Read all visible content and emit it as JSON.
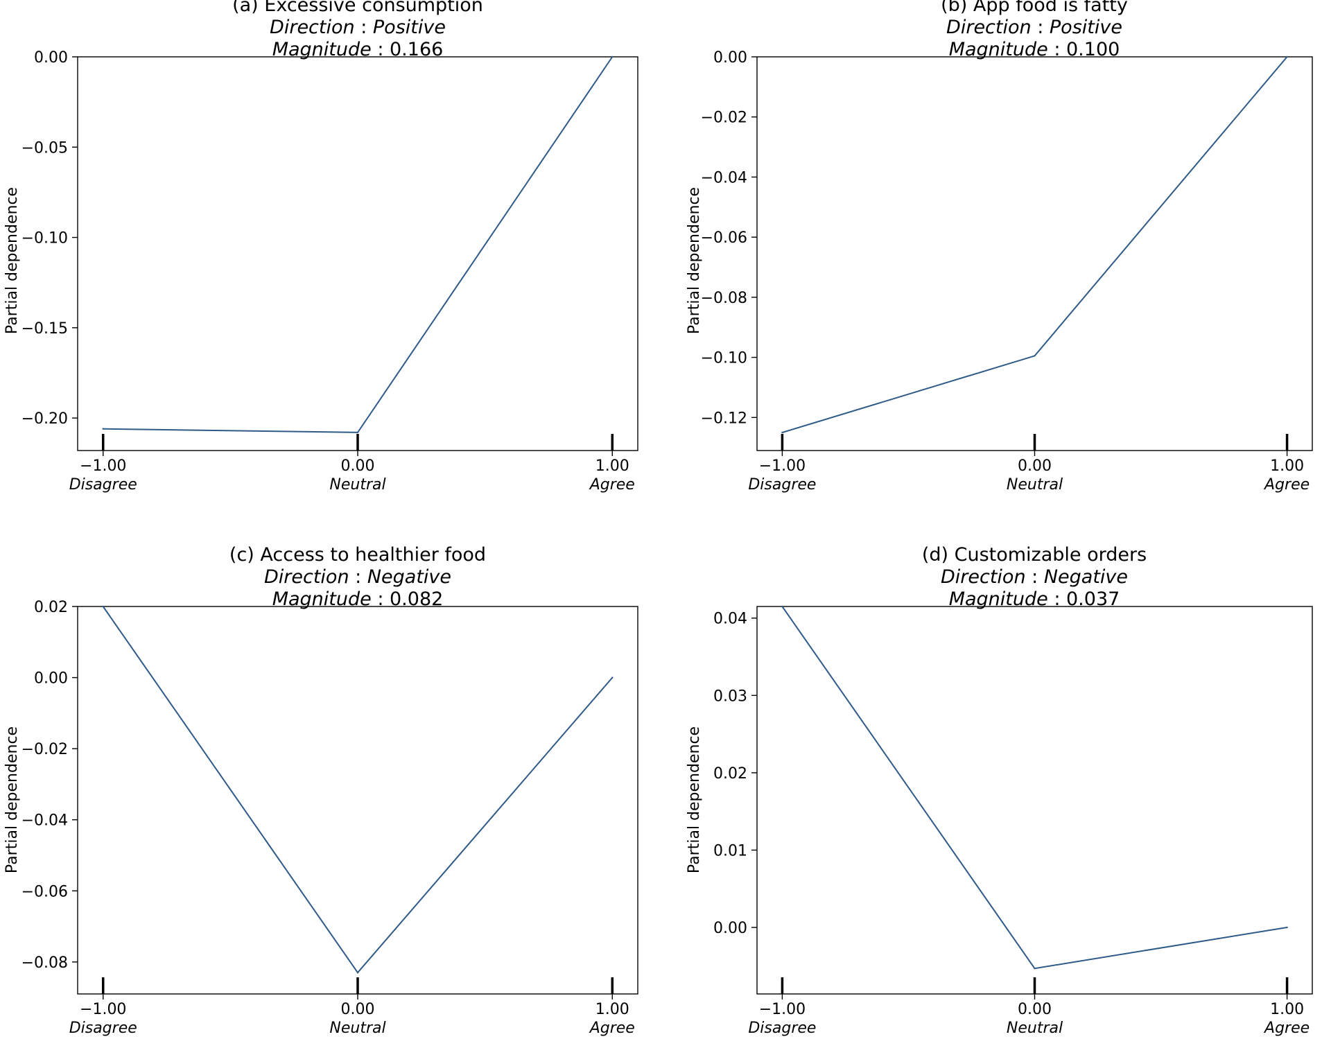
{
  "line_color": "#2e5a88",
  "chart_data": [
    {
      "type": "line",
      "title": "(a) Excessive consumption",
      "direction_label": "Direction",
      "direction_value": "Positive",
      "magnitude_label": "Magnitude",
      "magnitude_value": "0.166",
      "ylabel": "Partial dependence",
      "x": [
        -1,
        0,
        1
      ],
      "y": [
        -0.206,
        -0.208,
        0.0
      ],
      "xlim": [
        -1.1,
        1.1
      ],
      "ylim": [
        -0.218,
        0.0
      ],
      "yticks": [
        0.0,
        -0.05,
        -0.1,
        -0.15,
        -0.2
      ],
      "ytick_labels": [
        "0.00",
        "−0.05",
        "−0.10",
        "−0.15",
        "−0.20"
      ],
      "xticks": [
        -1,
        0,
        1
      ],
      "xtick_labels": [
        "−1.00",
        "0.00",
        "1.00"
      ],
      "xcat_labels": [
        "Disagree",
        "Neutral",
        "Agree"
      ]
    },
    {
      "type": "line",
      "title": "(b) App food is fatty",
      "direction_label": "Direction",
      "direction_value": "Positive",
      "magnitude_label": "Magnitude",
      "magnitude_value": "0.100",
      "ylabel": "Partial dependence",
      "x": [
        -1,
        0,
        1
      ],
      "y": [
        -0.125,
        -0.0995,
        0.0
      ],
      "xlim": [
        -1.1,
        1.1
      ],
      "ylim": [
        -0.131,
        0.0
      ],
      "yticks": [
        0.0,
        -0.02,
        -0.04,
        -0.06,
        -0.08,
        -0.1,
        -0.12
      ],
      "ytick_labels": [
        "0.00",
        "−0.02",
        "−0.04",
        "−0.06",
        "−0.08",
        "−0.10",
        "−0.12"
      ],
      "xticks": [
        -1,
        0,
        1
      ],
      "xtick_labels": [
        "−1.00",
        "0.00",
        "1.00"
      ],
      "xcat_labels": [
        "Disagree",
        "Neutral",
        "Agree"
      ]
    },
    {
      "type": "line",
      "title": "(c) Access to healthier food",
      "direction_label": "Direction",
      "direction_value": "Negative",
      "magnitude_label": "Magnitude",
      "magnitude_value": "0.082",
      "ylabel": "Partial dependence",
      "x": [
        -1,
        0,
        1
      ],
      "y": [
        0.02,
        -0.083,
        0.0
      ],
      "xlim": [
        -1.1,
        1.1
      ],
      "ylim": [
        -0.089,
        0.02
      ],
      "yticks": [
        0.02,
        0.0,
        -0.02,
        -0.04,
        -0.06,
        -0.08
      ],
      "ytick_labels": [
        "0.02",
        "0.00",
        "−0.02",
        "−0.04",
        "−0.06",
        "−0.08"
      ],
      "xticks": [
        -1,
        0,
        1
      ],
      "xtick_labels": [
        "−1.00",
        "0.00",
        "1.00"
      ],
      "xcat_labels": [
        "Disagree",
        "Neutral",
        "Agree"
      ]
    },
    {
      "type": "line",
      "title": "(d) Customizable orders",
      "direction_label": "Direction",
      "direction_value": "Negative",
      "magnitude_label": "Magnitude",
      "magnitude_value": "0.037",
      "ylabel": "Partial dependence",
      "x": [
        -1,
        0,
        1
      ],
      "y": [
        0.0415,
        -0.0053,
        0.0
      ],
      "xlim": [
        -1.1,
        1.1
      ],
      "ylim": [
        -0.0086,
        0.0415
      ],
      "yticks": [
        0.04,
        0.03,
        0.02,
        0.01,
        0.0
      ],
      "ytick_labels": [
        "0.04",
        "0.03",
        "0.02",
        "0.01",
        "0.00"
      ],
      "xticks": [
        -1,
        0,
        1
      ],
      "xtick_labels": [
        "−1.00",
        "0.00",
        "1.00"
      ],
      "xcat_labels": [
        "Disagree",
        "Neutral",
        "Agree"
      ]
    }
  ]
}
